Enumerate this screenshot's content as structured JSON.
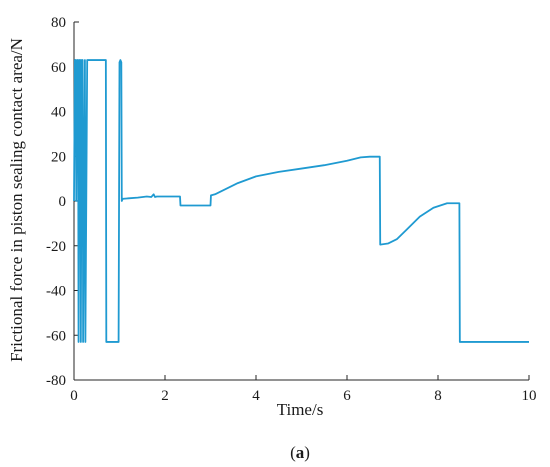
{
  "chart_data": {
    "type": "line",
    "xlabel": "Time/s",
    "ylabel": "Frictional force in piston sealing contact area/N",
    "xlim": [
      0,
      10
    ],
    "ylim": [
      -80,
      80
    ],
    "xticks": [
      0,
      2,
      4,
      6,
      8,
      10
    ],
    "yticks": [
      -80,
      -60,
      -40,
      -20,
      0,
      20,
      40,
      60,
      80
    ],
    "grid": false,
    "line_color": "#1f9ad1",
    "series": [
      {
        "x": [
          0,
          0.02,
          0.04,
          0.05,
          0.07,
          0.09,
          0.1,
          0.12,
          0.14,
          0.15,
          0.17,
          0.19,
          0.2,
          0.22,
          0.24,
          0.25,
          0.27,
          0.29,
          0.3,
          0.32,
          0.34,
          0.35,
          0.7,
          0.71,
          0.98,
          0.99,
          1.0,
          1.02,
          1.04,
          1.05,
          1.07,
          1.09,
          1.2,
          1.4,
          1.6,
          1.7,
          1.75,
          1.78,
          1.82,
          2.0,
          2.2,
          2.33,
          2.34,
          3.0,
          3.01,
          3.1,
          3.3,
          3.6,
          4.0,
          4.5,
          5.0,
          5.5,
          6.0,
          6.3,
          6.5,
          6.72,
          6.73,
          6.9,
          7.1,
          7.3,
          7.6,
          7.9,
          8.2,
          8.47,
          8.48,
          10.0
        ],
        "y": [
          0,
          63,
          63,
          0,
          63,
          63,
          -63,
          63,
          63,
          -63,
          63,
          63,
          -63,
          0,
          63,
          -63,
          0,
          63,
          63,
          63,
          63,
          63,
          63,
          -63,
          -63,
          0,
          62,
          63,
          62,
          0,
          1,
          1,
          1.2,
          1.5,
          2,
          1.8,
          3,
          1.8,
          2,
          2,
          2,
          2,
          -2,
          -2,
          2.5,
          3,
          5,
          8,
          11,
          13,
          14.5,
          16,
          18,
          19.5,
          19.8,
          19.8,
          -19.5,
          -19,
          -17,
          -13,
          -7,
          -3,
          -1,
          -1,
          -63,
          -63
        ]
      }
    ]
  },
  "caption": {
    "open": "(",
    "letter": "a",
    "close": ")"
  }
}
